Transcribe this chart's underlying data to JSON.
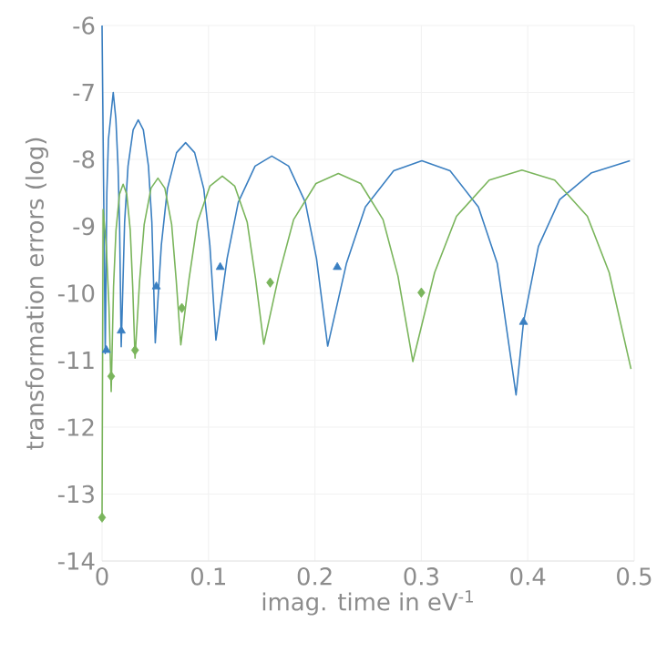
{
  "chart_data": {
    "type": "line",
    "xlabel": "imag. time in eV$^{-1}$",
    "ylabel": "transformation errors (log)",
    "xlim": [
      0,
      0.5
    ],
    "ylim": [
      -14,
      -6
    ],
    "xticks": [
      0,
      0.1,
      0.2,
      0.3,
      0.4,
      0.5
    ],
    "yticks": [
      -14,
      -13,
      -12,
      -11,
      -10,
      -9,
      -8,
      -7,
      -6
    ],
    "grid": true,
    "series": [
      {
        "color": "#3a7fc1",
        "marker": "none",
        "x": [
          0,
          0.003,
          0.0045,
          0.006,
          0.0105,
          0.013,
          0.015,
          0.0165,
          0.018,
          0.0212,
          0.0244,
          0.0292,
          0.034,
          0.0388,
          0.0436,
          0.0468,
          0.05,
          0.0557,
          0.0614,
          0.07,
          0.0785,
          0.087,
          0.0956,
          0.1013,
          0.107,
          0.1175,
          0.128,
          0.1438,
          0.1595,
          0.1753,
          0.191,
          0.2015,
          0.212,
          0.2297,
          0.2474,
          0.274,
          0.3005,
          0.327,
          0.3536,
          0.3713,
          0.389,
          0.396,
          0.41,
          0.43,
          0.46,
          0.496
        ],
        "values": [
          -6.0,
          -10.9,
          -8.5,
          -7.7,
          -7.0,
          -7.4,
          -8.1,
          -9.0,
          -10.8,
          -8.94,
          -8.1,
          -7.56,
          -7.41,
          -7.56,
          -8.1,
          -8.94,
          -10.74,
          -9.28,
          -8.44,
          -7.9,
          -7.75,
          -7.9,
          -8.44,
          -9.28,
          -10.7,
          -9.48,
          -8.64,
          -8.1,
          -7.95,
          -8.1,
          -8.64,
          -9.48,
          -10.79,
          -9.55,
          -8.71,
          -8.17,
          -8.02,
          -8.17,
          -8.71,
          -9.55,
          -11.52,
          -10.43,
          -9.3,
          -8.6,
          -8.2,
          -8.02
        ]
      },
      {
        "color": "#7ab55c",
        "marker": "none",
        "x": [
          0,
          0.001,
          0.004,
          0.0065,
          0.0086,
          0.0108,
          0.0131,
          0.0164,
          0.0198,
          0.0232,
          0.0265,
          0.0288,
          0.031,
          0.0353,
          0.0396,
          0.046,
          0.0525,
          0.059,
          0.0654,
          0.0697,
          0.074,
          0.0818,
          0.0896,
          0.1013,
          0.113,
          0.1247,
          0.1364,
          0.1442,
          0.152,
          0.166,
          0.18,
          0.201,
          0.222,
          0.243,
          0.264,
          0.278,
          0.292,
          0.3125,
          0.333,
          0.3638,
          0.3945,
          0.4253,
          0.456,
          0.4765,
          0.497
        ],
        "values": [
          -13.35,
          -8.75,
          -9.3,
          -10.2,
          -11.47,
          -9.9,
          -9.06,
          -8.52,
          -8.37,
          -8.52,
          -9.06,
          -9.9,
          -10.97,
          -9.81,
          -8.97,
          -8.43,
          -8.28,
          -8.43,
          -8.97,
          -9.81,
          -10.77,
          -9.78,
          -8.94,
          -8.4,
          -8.25,
          -8.4,
          -8.94,
          -9.78,
          -10.76,
          -9.74,
          -8.9,
          -8.36,
          -8.21,
          -8.36,
          -8.9,
          -9.74,
          -11.02,
          -9.69,
          -8.85,
          -8.31,
          -8.16,
          -8.31,
          -8.85,
          -9.69,
          -11.13
        ]
      },
      {
        "type": "scatter",
        "color": "#3a7fc1",
        "marker": "triangle",
        "x": [
          0.004,
          0.018,
          0.051,
          0.111,
          0.221,
          0.396
        ],
        "values": [
          -10.85,
          -10.56,
          -9.9,
          -9.61,
          -9.61,
          -10.43
        ]
      },
      {
        "type": "scatter",
        "color": "#7ab55c",
        "marker": "diamond",
        "x": [
          0,
          0.0086,
          0.031,
          0.075,
          0.158,
          0.3
        ],
        "values": [
          -13.35,
          -11.24,
          -10.85,
          -10.22,
          -9.84,
          -9.99
        ]
      }
    ]
  }
}
